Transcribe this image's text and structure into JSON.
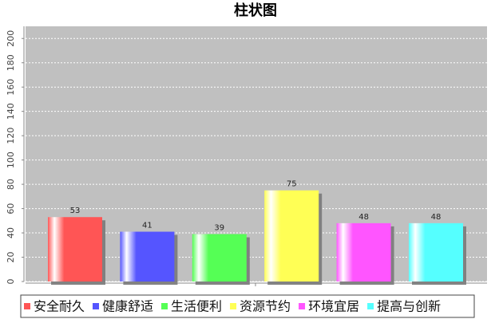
{
  "chart_data": {
    "type": "bar",
    "title": "柱状图",
    "categories": [
      null
    ],
    "series": [
      {
        "name": "安全耐久",
        "color": "#ff5555",
        "values": [
          53
        ]
      },
      {
        "name": "健康舒适",
        "color": "#5555ff",
        "values": [
          41
        ]
      },
      {
        "name": "生活便利",
        "color": "#55ff55",
        "values": [
          39
        ]
      },
      {
        "name": "资源节约",
        "color": "#ffff55",
        "values": [
          75
        ]
      },
      {
        "name": "环境宜居",
        "color": "#ff55ff",
        "values": [
          48
        ]
      },
      {
        "name": "提高与创新",
        "color": "#55ffff",
        "values": [
          48
        ]
      }
    ],
    "ylim": [
      0,
      210
    ],
    "yticks": [
      0,
      20,
      40,
      60,
      80,
      100,
      120,
      140,
      160,
      180,
      200
    ],
    "grid": true,
    "legend": "bottom"
  }
}
